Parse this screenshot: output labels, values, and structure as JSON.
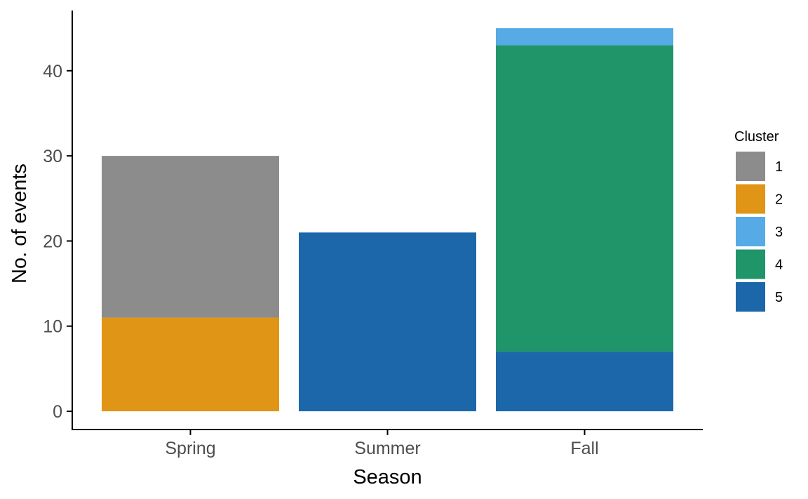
{
  "chart_data": {
    "type": "bar",
    "stacked": true,
    "title": "",
    "xlabel": "Season",
    "ylabel": "No. of events",
    "categories": [
      "Spring",
      "Summer",
      "Fall"
    ],
    "ylim": [
      0,
      45
    ],
    "yticks": [
      0,
      10,
      20,
      30,
      40
    ],
    "grid": false,
    "legend": {
      "title": "Cluster",
      "position": "right"
    },
    "series": [
      {
        "name": "1",
        "color": "#8c8c8c",
        "values": [
          19,
          0,
          0
        ]
      },
      {
        "name": "2",
        "color": "#e09516",
        "values": [
          11,
          0,
          0
        ]
      },
      {
        "name": "3",
        "color": "#56aae6",
        "values": [
          0,
          0,
          2
        ]
      },
      {
        "name": "4",
        "color": "#21956a",
        "values": [
          0,
          0,
          36
        ]
      },
      {
        "name": "5",
        "color": "#1b67a9",
        "values": [
          0,
          21,
          7
        ]
      }
    ],
    "stack_order_bottom_to_top": [
      "5",
      "4",
      "3",
      "2",
      "1"
    ]
  }
}
